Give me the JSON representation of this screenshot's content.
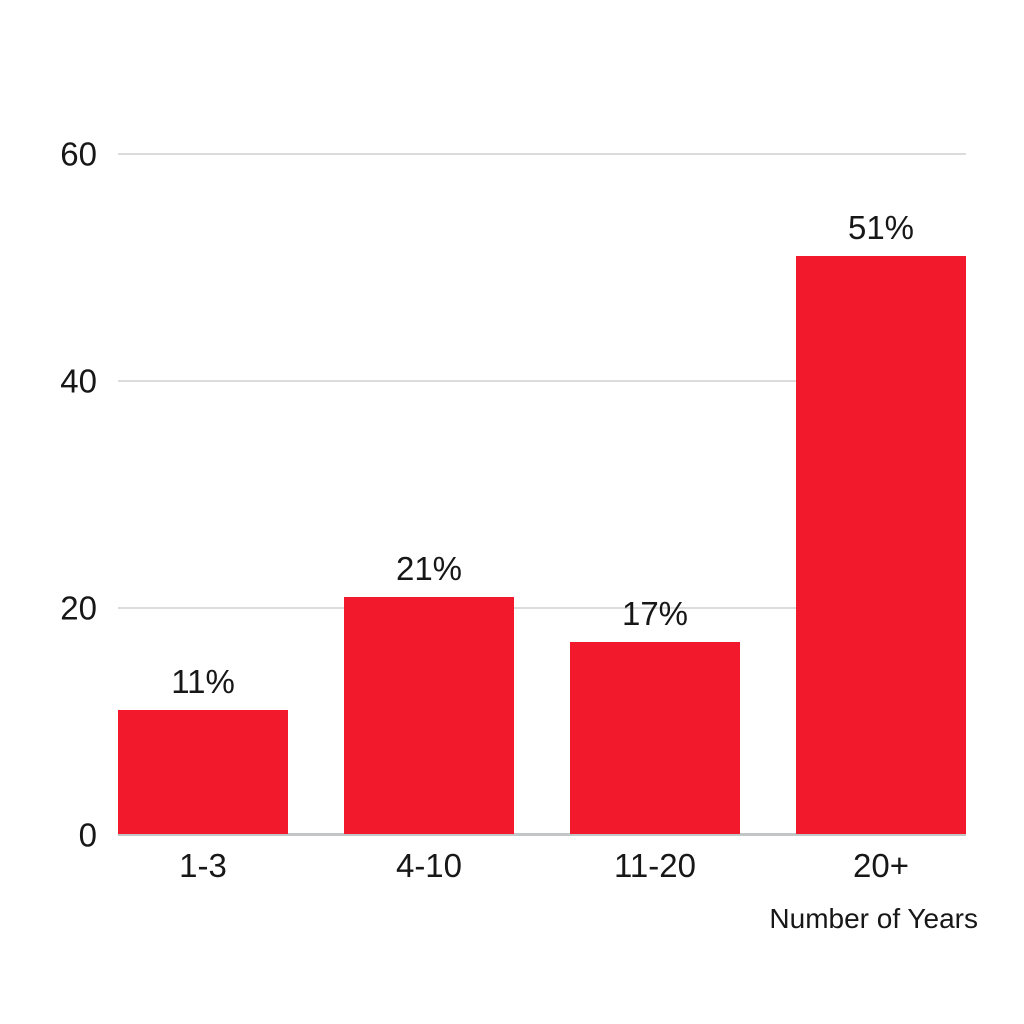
{
  "chart_data": {
    "type": "bar",
    "title": "",
    "categories": [
      "1-3",
      "4-10",
      "11-20",
      "20+"
    ],
    "values": [
      11,
      21,
      17,
      51
    ],
    "data_labels": [
      "11%",
      "21%",
      "17%",
      "51%"
    ],
    "xlabel": "Number of Years",
    "ylabel": "",
    "y_ticks": [
      0,
      20,
      40,
      60
    ],
    "y_tick_labels": [
      "0",
      "20",
      "40",
      "60"
    ],
    "ylim": [
      0,
      62
    ],
    "grid": true,
    "legend": "none",
    "colors": {
      "bar": "#f2192d",
      "gridline": "#dcdcdc",
      "axis_line": "#c3c6c6",
      "text": "#171717",
      "background": "#ffffff"
    }
  }
}
